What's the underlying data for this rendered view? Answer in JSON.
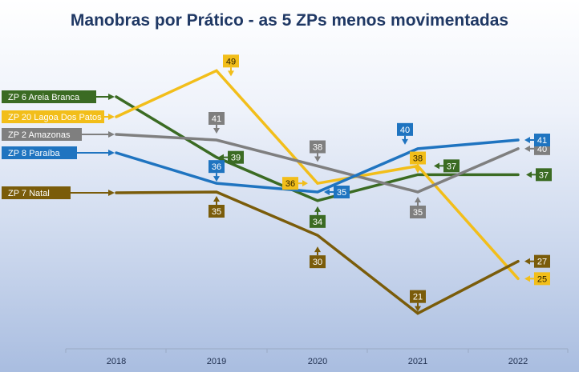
{
  "chart_data": {
    "type": "line",
    "title": "Manobras por Prático - as 5 ZPs menos movimentadas",
    "categories": [
      "2018",
      "2019",
      "2020",
      "2021",
      "2022"
    ],
    "xlabel": "",
    "ylabel": "",
    "ylim": [
      17,
      53
    ],
    "grid": false,
    "legend": "left",
    "series": [
      {
        "name": "ZP 6 Areia Branca",
        "color": "#3b6b23",
        "values": [
          null,
          39,
          34,
          37,
          37
        ],
        "labels": [
          "",
          "39",
          "34",
          "37",
          "37"
        ]
      },
      {
        "name": "ZP 20 Lagoa Dos Patos",
        "color": "#f2be1a",
        "values": [
          null,
          49,
          36,
          38,
          25
        ],
        "labels": [
          "",
          "49",
          "36",
          "38",
          "25"
        ]
      },
      {
        "name": "ZP 2 Amazonas",
        "color": "#7f7f7f",
        "values": [
          null,
          41,
          38,
          35,
          40
        ],
        "labels": [
          "",
          "41",
          "38",
          "35",
          "40"
        ]
      },
      {
        "name": "ZP 8 Paraíba",
        "color": "#1f74c0",
        "values": [
          null,
          36,
          35,
          40,
          41
        ],
        "labels": [
          "",
          "36",
          "35",
          "40",
          "41"
        ]
      },
      {
        "name": "ZP 7 Natal",
        "color": "#7a5c0a",
        "values": [
          null,
          35,
          30,
          21,
          27
        ],
        "labels": [
          "",
          "35",
          "30",
          "21",
          "27"
        ]
      }
    ]
  }
}
